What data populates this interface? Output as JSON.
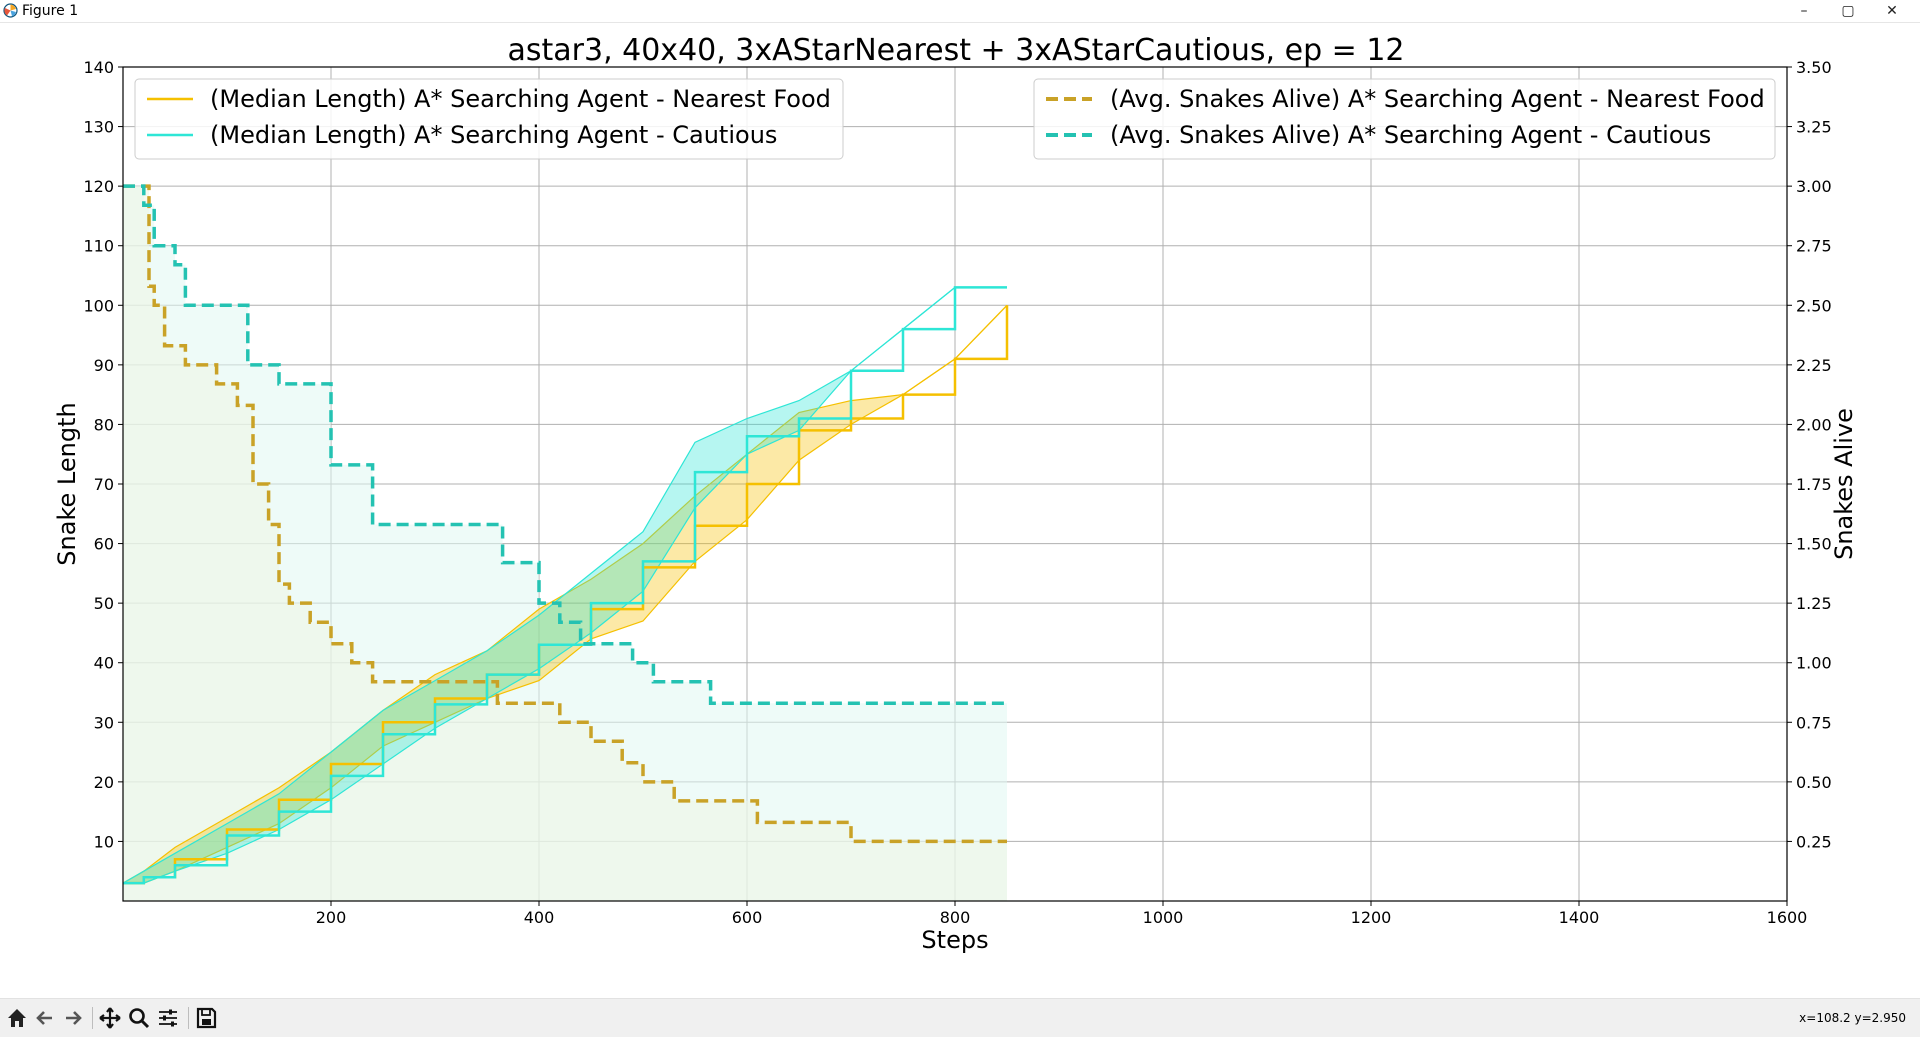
{
  "window": {
    "title": "Figure 1",
    "buttons": {
      "minimize": "–",
      "maximize": "▢",
      "close": "✕"
    }
  },
  "toolbar": {
    "items": [
      "home-icon",
      "back-icon",
      "forward-icon",
      "pan-icon",
      "zoom-icon",
      "configure-icon",
      "save-icon"
    ],
    "coords": "x=108.2 y=2.950"
  },
  "chart_data": {
    "type": "line",
    "title": "astar3, 40x40, 3xAStarNearest + 3xAStarCautious, ep = 12",
    "xlabel": "Steps",
    "ylabel": "Snake Length",
    "y2label": "Snakes Alive",
    "xlim": [
      0,
      1600
    ],
    "ylim": [
      0,
      140
    ],
    "y2lim": [
      0,
      3.5
    ],
    "xticks": [
      200,
      400,
      600,
      800,
      1000,
      1200,
      1400,
      1600
    ],
    "yticks": [
      10,
      20,
      30,
      40,
      50,
      60,
      70,
      80,
      90,
      100,
      110,
      120,
      130,
      140
    ],
    "y2ticks": [
      "0.25",
      "0.50",
      "0.75",
      "1.00",
      "1.25",
      "1.50",
      "1.75",
      "2.00",
      "2.25",
      "2.50",
      "2.75",
      "3.00",
      "3.25",
      "3.50"
    ],
    "grid": true,
    "legend_placement": [
      "upper left",
      "upper right"
    ],
    "colors": {
      "nearest": "#f5c000",
      "cautious": "#2ee6d6",
      "nearest_alive": "#c9a227",
      "cautious_alive": "#24c2b2"
    },
    "series": [
      {
        "name": "(Median Length) A* Searching Agent - Nearest Food",
        "axis": "left",
        "style": "solid",
        "x": [
          0,
          20,
          50,
          100,
          150,
          200,
          250,
          300,
          350,
          400,
          450,
          500,
          550,
          600,
          650,
          700,
          750,
          800,
          850
        ],
        "y": [
          3,
          4,
          7,
          12,
          17,
          23,
          30,
          34,
          38,
          43,
          49,
          56,
          63,
          70,
          79,
          81,
          85,
          91,
          100
        ],
        "band_low": [
          3,
          3,
          5,
          9,
          13,
          19,
          26,
          30,
          34,
          37,
          44,
          47,
          57,
          64,
          74,
          80,
          85,
          91,
          100
        ],
        "band_high": [
          3,
          5,
          9,
          14,
          19,
          25,
          32,
          38,
          42,
          49,
          54,
          60,
          68,
          75,
          82,
          84,
          85,
          91,
          100
        ]
      },
      {
        "name": "(Median Length) A* Searching Agent - Cautious",
        "axis": "left",
        "style": "solid",
        "x": [
          0,
          20,
          50,
          100,
          150,
          200,
          250,
          300,
          350,
          400,
          450,
          500,
          550,
          600,
          650,
          700,
          750,
          800,
          850
        ],
        "y": [
          3,
          4,
          6,
          11,
          15,
          21,
          28,
          33,
          38,
          43,
          50,
          57,
          72,
          78,
          81,
          89,
          96,
          103,
          103
        ],
        "band_low": [
          3,
          3,
          5,
          8,
          12,
          17,
          23,
          29,
          34,
          39,
          45,
          52,
          66,
          75,
          79,
          89,
          96,
          103,
          103
        ],
        "band_high": [
          3,
          5,
          8,
          13,
          18,
          25,
          32,
          37,
          42,
          48,
          55,
          62,
          77,
          81,
          84,
          89,
          96,
          103,
          103
        ]
      },
      {
        "name": "(Avg. Snakes Alive) A* Searching Agent - Nearest Food",
        "axis": "right",
        "style": "dashed",
        "x": [
          0,
          15,
          25,
          30,
          40,
          60,
          90,
          110,
          125,
          140,
          150,
          160,
          180,
          200,
          220,
          240,
          280,
          360,
          400,
          420,
          450,
          480,
          500,
          530,
          610,
          650,
          700,
          850
        ],
        "y": [
          3.0,
          3.0,
          2.58,
          2.5,
          2.33,
          2.25,
          2.17,
          2.08,
          1.75,
          1.58,
          1.33,
          1.25,
          1.17,
          1.08,
          1.0,
          0.92,
          0.92,
          0.83,
          0.83,
          0.75,
          0.67,
          0.58,
          0.5,
          0.42,
          0.33,
          0.33,
          0.25,
          0.25
        ]
      },
      {
        "name": "(Avg. Snakes Alive) A* Searching Agent - Cautious",
        "axis": "right",
        "style": "dashed",
        "x": [
          0,
          15,
          20,
          30,
          50,
          60,
          80,
          120,
          130,
          150,
          170,
          200,
          240,
          300,
          365,
          380,
          400,
          420,
          440,
          490,
          510,
          560,
          565,
          600,
          850
        ],
        "y": [
          3.0,
          3.0,
          2.92,
          2.75,
          2.67,
          2.5,
          2.5,
          2.25,
          2.25,
          2.17,
          2.17,
          1.83,
          1.58,
          1.58,
          1.42,
          1.42,
          1.25,
          1.17,
          1.08,
          1.0,
          0.92,
          0.92,
          0.83,
          0.83,
          0.83
        ]
      }
    ]
  }
}
